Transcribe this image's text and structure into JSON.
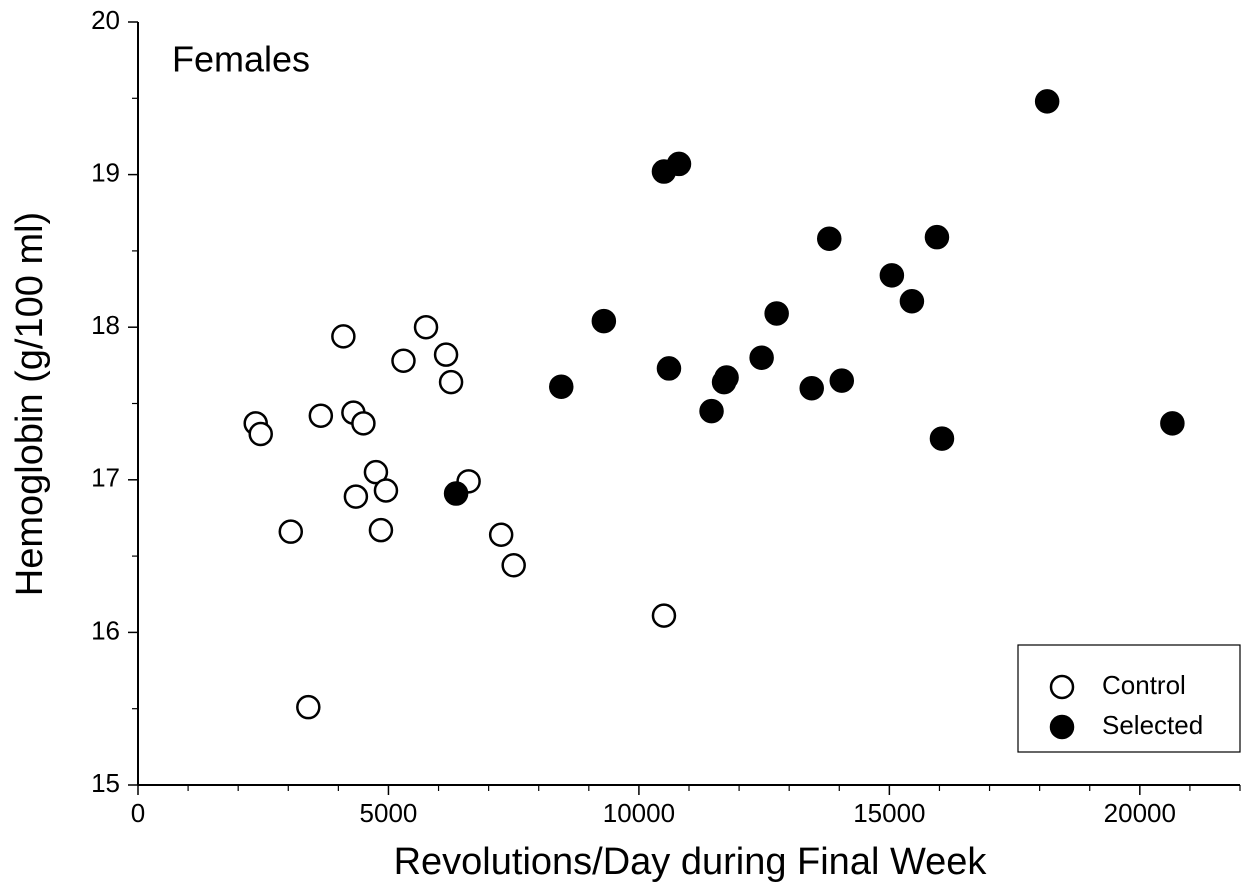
{
  "chart_data": {
    "type": "scatter",
    "title": "Females",
    "xlabel": "Revolutions/Day during Final Week",
    "ylabel": "Hemoglobin (g/100 ml)",
    "xlim": [
      0,
      22000
    ],
    "ylim": [
      15,
      20
    ],
    "xticks": [
      0,
      5000,
      10000,
      15000,
      20000
    ],
    "yticks": [
      15,
      16,
      17,
      18,
      19,
      20
    ],
    "xminor": [
      1000,
      2000,
      3000,
      4000,
      6000,
      7000,
      8000,
      9000,
      11000,
      12000,
      13000,
      14000,
      16000,
      17000,
      18000,
      19000,
      21000,
      22000
    ],
    "yminor": [
      15.5,
      16.5,
      17.5,
      18.5,
      19.5
    ],
    "legend": "bottom-right",
    "series": [
      {
        "name": "Control",
        "color": "#000000",
        "filled": false,
        "x": [
          2350,
          2450,
          3050,
          3400,
          3650,
          4100,
          4300,
          4350,
          4500,
          4750,
          4850,
          4950,
          5300,
          5750,
          6150,
          6250,
          6600,
          7250,
          7500,
          10500
        ],
        "values": [
          17.37,
          17.3,
          16.66,
          15.51,
          17.42,
          17.94,
          17.44,
          16.89,
          17.37,
          17.05,
          16.67,
          16.93,
          17.78,
          18.0,
          17.82,
          17.64,
          16.99,
          16.64,
          16.44,
          16.11
        ]
      },
      {
        "name": "Selected",
        "color": "#000000",
        "filled": true,
        "x": [
          6350,
          8450,
          9300,
          10500,
          10800,
          10600,
          11450,
          11700,
          11750,
          12450,
          12750,
          13450,
          13800,
          14050,
          15050,
          15450,
          15950,
          16050,
          18150,
          20650
        ],
        "values": [
          16.91,
          17.61,
          18.04,
          19.02,
          19.07,
          17.73,
          17.45,
          17.64,
          17.67,
          17.8,
          18.09,
          17.6,
          18.58,
          17.65,
          18.34,
          18.17,
          18.59,
          17.27,
          19.48,
          17.37
        ]
      }
    ]
  }
}
